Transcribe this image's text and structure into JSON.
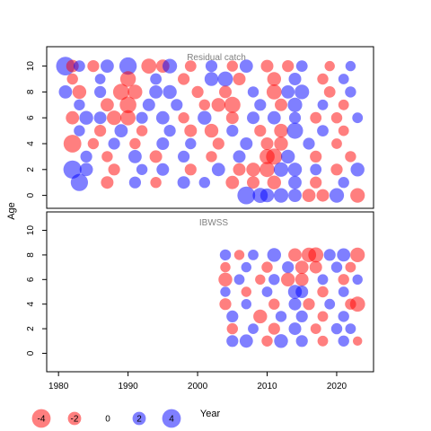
{
  "chart_data": [
    {
      "type": "scatter",
      "title": "Residual catch",
      "ylabel": "Age",
      "xlim": [
        1978.3,
        2025.3
      ],
      "ylim": [
        -1,
        11.5
      ],
      "y_ticks": [
        0,
        2,
        4,
        6,
        8,
        10
      ],
      "x_ticks": [],
      "grid": false,
      "positive_color": "#0000ff",
      "negative_color": "#ff0000",
      "points": [
        {
          "x": 1981,
          "y": 10,
          "v": 4.0
        },
        {
          "x": 1982,
          "y": 10,
          "v": -1.8
        },
        {
          "x": 1983,
          "y": 10,
          "v": 1.5
        },
        {
          "x": 1985,
          "y": 10,
          "v": -1.6
        },
        {
          "x": 1987,
          "y": 10,
          "v": 2.0
        },
        {
          "x": 1990,
          "y": 10,
          "v": 3.5
        },
        {
          "x": 1993,
          "y": 10,
          "v": -2.6
        },
        {
          "x": 1995,
          "y": 10,
          "v": -2.0
        },
        {
          "x": 1996,
          "y": 10,
          "v": 2.4
        },
        {
          "x": 1999,
          "y": 10,
          "v": -1.5
        },
        {
          "x": 2002,
          "y": 10,
          "v": 1.6
        },
        {
          "x": 2005,
          "y": 10,
          "v": -1.4
        },
        {
          "x": 2007,
          "y": 10,
          "v": 2.0
        },
        {
          "x": 2010,
          "y": 10,
          "v": -1.8
        },
        {
          "x": 2013,
          "y": 10,
          "v": -1.6
        },
        {
          "x": 2015,
          "y": 10,
          "v": 1.5
        },
        {
          "x": 2019,
          "y": 10,
          "v": -1.2
        },
        {
          "x": 2022,
          "y": 10,
          "v": 1.2
        },
        {
          "x": 1982,
          "y": 9,
          "v": -1.4
        },
        {
          "x": 1986,
          "y": 9,
          "v": 1.3
        },
        {
          "x": 1990,
          "y": 9,
          "v": -2.8
        },
        {
          "x": 1994,
          "y": 9,
          "v": 1.5
        },
        {
          "x": 1998,
          "y": 9,
          "v": -1.6
        },
        {
          "x": 2002,
          "y": 9,
          "v": 2.2
        },
        {
          "x": 2004,
          "y": 9,
          "v": 2.6
        },
        {
          "x": 2006,
          "y": 9,
          "v": -1.8
        },
        {
          "x": 2011,
          "y": 9,
          "v": -2.2
        },
        {
          "x": 2014,
          "y": 9,
          "v": 1.8
        },
        {
          "x": 2018,
          "y": 9,
          "v": -1.4
        },
        {
          "x": 2021,
          "y": 9,
          "v": 1.3
        },
        {
          "x": 1981,
          "y": 8,
          "v": 2.0
        },
        {
          "x": 1983,
          "y": 8,
          "v": -2.2
        },
        {
          "x": 1986,
          "y": 8,
          "v": 1.6
        },
        {
          "x": 1989,
          "y": 8,
          "v": -3.0
        },
        {
          "x": 1991,
          "y": 8,
          "v": -2.4
        },
        {
          "x": 1994,
          "y": 8,
          "v": 2.0
        },
        {
          "x": 1996,
          "y": 8,
          "v": 2.2
        },
        {
          "x": 2000,
          "y": 8,
          "v": -1.6
        },
        {
          "x": 2004,
          "y": 8,
          "v": -1.8
        },
        {
          "x": 2008,
          "y": 8,
          "v": 1.4
        },
        {
          "x": 2011,
          "y": 8,
          "v": -2.6
        },
        {
          "x": 2013,
          "y": 8,
          "v": 2.0
        },
        {
          "x": 2015,
          "y": 8,
          "v": 2.4
        },
        {
          "x": 2019,
          "y": 8,
          "v": -1.5
        },
        {
          "x": 2022,
          "y": 8,
          "v": 1.4
        },
        {
          "x": 1983,
          "y": 7,
          "v": 1.4
        },
        {
          "x": 1987,
          "y": 7,
          "v": -2.0
        },
        {
          "x": 1990,
          "y": 7,
          "v": -3.2
        },
        {
          "x": 1993,
          "y": 7,
          "v": 1.8
        },
        {
          "x": 1997,
          "y": 7,
          "v": 1.6
        },
        {
          "x": 2001,
          "y": 7,
          "v": -1.4
        },
        {
          "x": 2003,
          "y": 7,
          "v": -2.2
        },
        {
          "x": 2005,
          "y": 7,
          "v": -3.0
        },
        {
          "x": 2009,
          "y": 7,
          "v": 1.6
        },
        {
          "x": 2012,
          "y": 7,
          "v": -1.8
        },
        {
          "x": 2014,
          "y": 7,
          "v": 2.4
        },
        {
          "x": 2018,
          "y": 7,
          "v": 1.3
        },
        {
          "x": 2021,
          "y": 7,
          "v": -1.3
        },
        {
          "x": 1982,
          "y": 6,
          "v": -2.0
        },
        {
          "x": 1984,
          "y": 6,
          "v": 2.2
        },
        {
          "x": 1986,
          "y": 6,
          "v": 1.8
        },
        {
          "x": 1988,
          "y": 6,
          "v": -2.4
        },
        {
          "x": 1990,
          "y": 6,
          "v": -2.6
        },
        {
          "x": 1992,
          "y": 6,
          "v": 1.6
        },
        {
          "x": 1995,
          "y": 6,
          "v": 2.0
        },
        {
          "x": 1998,
          "y": 6,
          "v": -1.4
        },
        {
          "x": 2001,
          "y": 6,
          "v": 2.2
        },
        {
          "x": 2005,
          "y": 6,
          "v": -1.8
        },
        {
          "x": 2008,
          "y": 6,
          "v": 1.8
        },
        {
          "x": 2011,
          "y": 6,
          "v": 2.0
        },
        {
          "x": 2014,
          "y": 6,
          "v": 1.6
        },
        {
          "x": 2017,
          "y": 6,
          "v": -1.5
        },
        {
          "x": 2020,
          "y": 6,
          "v": -1.4
        },
        {
          "x": 2023,
          "y": 6,
          "v": 1.3
        },
        {
          "x": 1983,
          "y": 5,
          "v": 1.4
        },
        {
          "x": 1986,
          "y": 5,
          "v": -1.6
        },
        {
          "x": 1989,
          "y": 5,
          "v": 2.0
        },
        {
          "x": 1992,
          "y": 5,
          "v": -1.4
        },
        {
          "x": 1996,
          "y": 5,
          "v": 1.6
        },
        {
          "x": 1999,
          "y": 5,
          "v": -1.8
        },
        {
          "x": 2002,
          "y": 5,
          "v": -2.2
        },
        {
          "x": 2005,
          "y": 5,
          "v": 1.6
        },
        {
          "x": 2009,
          "y": 5,
          "v": -1.6
        },
        {
          "x": 2012,
          "y": 5,
          "v": -2.2
        },
        {
          "x": 2014,
          "y": 5,
          "v": 3.0
        },
        {
          "x": 2018,
          "y": 5,
          "v": 1.5
        },
        {
          "x": 2021,
          "y": 5,
          "v": -1.3
        },
        {
          "x": 1982,
          "y": 4,
          "v": -3.6
        },
        {
          "x": 1985,
          "y": 4,
          "v": -1.4
        },
        {
          "x": 1988,
          "y": 4,
          "v": 1.6
        },
        {
          "x": 1991,
          "y": 4,
          "v": -1.4
        },
        {
          "x": 1995,
          "y": 4,
          "v": 1.8
        },
        {
          "x": 1999,
          "y": 4,
          "v": 1.4
        },
        {
          "x": 2003,
          "y": 4,
          "v": -1.6
        },
        {
          "x": 2007,
          "y": 4,
          "v": 1.8
        },
        {
          "x": 2010,
          "y": 4,
          "v": -1.8
        },
        {
          "x": 2012,
          "y": 4,
          "v": -2.2
        },
        {
          "x": 2016,
          "y": 4,
          "v": 1.6
        },
        {
          "x": 2020,
          "y": 4,
          "v": -1.3
        },
        {
          "x": 1984,
          "y": 3,
          "v": 1.6
        },
        {
          "x": 1987,
          "y": 3,
          "v": -1.4
        },
        {
          "x": 1991,
          "y": 3,
          "v": 2.0
        },
        {
          "x": 1994,
          "y": 3,
          "v": -1.8
        },
        {
          "x": 1998,
          "y": 3,
          "v": 1.6
        },
        {
          "x": 2002,
          "y": 3,
          "v": -1.4
        },
        {
          "x": 2006,
          "y": 3,
          "v": 1.8
        },
        {
          "x": 2010,
          "y": 3,
          "v": -2.6
        },
        {
          "x": 2011,
          "y": 3,
          "v": -3.0
        },
        {
          "x": 2013,
          "y": 3,
          "v": 2.2
        },
        {
          "x": 2017,
          "y": 3,
          "v": -1.6
        },
        {
          "x": 2022,
          "y": 3,
          "v": -1.4
        },
        {
          "x": 1982,
          "y": 2,
          "v": 3.8
        },
        {
          "x": 1984,
          "y": 2,
          "v": 2.0
        },
        {
          "x": 1988,
          "y": 2,
          "v": -1.6
        },
        {
          "x": 1992,
          "y": 2,
          "v": 1.4
        },
        {
          "x": 1995,
          "y": 2,
          "v": 1.8
        },
        {
          "x": 1999,
          "y": 2,
          "v": -1.6
        },
        {
          "x": 2003,
          "y": 2,
          "v": 2.0
        },
        {
          "x": 2006,
          "y": 2,
          "v": -1.8
        },
        {
          "x": 2008,
          "y": 2,
          "v": -2.2
        },
        {
          "x": 2010,
          "y": 2,
          "v": -2.6
        },
        {
          "x": 2012,
          "y": 2,
          "v": 2.4
        },
        {
          "x": 2014,
          "y": 2,
          "v": 2.2
        },
        {
          "x": 2017,
          "y": 2,
          "v": 1.5
        },
        {
          "x": 2020,
          "y": 2,
          "v": -1.6
        },
        {
          "x": 2023,
          "y": 2,
          "v": 2.2
        },
        {
          "x": 1983,
          "y": 1,
          "v": 3.4
        },
        {
          "x": 1987,
          "y": 1,
          "v": -1.8
        },
        {
          "x": 1991,
          "y": 1,
          "v": 1.6
        },
        {
          "x": 1994,
          "y": 1,
          "v": -1.4
        },
        {
          "x": 1998,
          "y": 1,
          "v": 1.8
        },
        {
          "x": 2001,
          "y": 1,
          "v": 1.4
        },
        {
          "x": 2005,
          "y": 1,
          "v": -2.0
        },
        {
          "x": 2008,
          "y": 1,
          "v": -1.8
        },
        {
          "x": 2011,
          "y": 1,
          "v": -2.2
        },
        {
          "x": 2014,
          "y": 1,
          "v": 2.0
        },
        {
          "x": 2017,
          "y": 1,
          "v": -1.6
        },
        {
          "x": 2021,
          "y": 1,
          "v": 1.4
        },
        {
          "x": 2007,
          "y": 0,
          "v": 3.6
        },
        {
          "x": 2009,
          "y": 0,
          "v": 2.6
        },
        {
          "x": 2010,
          "y": 0,
          "v": 2.2
        },
        {
          "x": 2012,
          "y": 0,
          "v": 2.4
        },
        {
          "x": 2014,
          "y": 0,
          "v": 2.0
        },
        {
          "x": 2016,
          "y": 0,
          "v": -2.0
        },
        {
          "x": 2018,
          "y": 0,
          "v": -1.8
        },
        {
          "x": 2020,
          "y": 0,
          "v": 2.4
        },
        {
          "x": 2023,
          "y": 0,
          "v": -2.4
        }
      ]
    },
    {
      "type": "scatter",
      "title": "IBWSS",
      "ylabel": "Age",
      "xlabel": "Year",
      "xlim": [
        1978.3,
        2025.3
      ],
      "ylim": [
        -1.5,
        11.5
      ],
      "y_ticks": [
        0,
        2,
        4,
        6,
        8,
        10
      ],
      "x_ticks": [
        1980,
        1990,
        2000,
        2010,
        2020
      ],
      "grid": false,
      "positive_color": "#0000ff",
      "negative_color": "#ff0000",
      "points": [
        {
          "x": 2004,
          "y": 8,
          "v": 1.4
        },
        {
          "x": 2006,
          "y": 8,
          "v": -1.2
        },
        {
          "x": 2008,
          "y": 8,
          "v": 1.3
        },
        {
          "x": 2011,
          "y": 8,
          "v": 2.2
        },
        {
          "x": 2014,
          "y": 8,
          "v": -2.0
        },
        {
          "x": 2016,
          "y": 8,
          "v": -2.4
        },
        {
          "x": 2017,
          "y": 8,
          "v": -2.6
        },
        {
          "x": 2019,
          "y": 8,
          "v": 1.6
        },
        {
          "x": 2021,
          "y": 8,
          "v": 2.0
        },
        {
          "x": 2023,
          "y": 8,
          "v": -2.4
        },
        {
          "x": 2004,
          "y": 7,
          "v": -1.2
        },
        {
          "x": 2007,
          "y": 7,
          "v": 1.2
        },
        {
          "x": 2010,
          "y": 7,
          "v": -1.4
        },
        {
          "x": 2013,
          "y": 7,
          "v": 1.6
        },
        {
          "x": 2015,
          "y": 7,
          "v": -2.0
        },
        {
          "x": 2017,
          "y": 7,
          "v": -1.8
        },
        {
          "x": 2020,
          "y": 7,
          "v": 1.4
        },
        {
          "x": 2022,
          "y": 7,
          "v": -1.3
        },
        {
          "x": 2004,
          "y": 6,
          "v": -2.2
        },
        {
          "x": 2006,
          "y": 6,
          "v": 1.3
        },
        {
          "x": 2009,
          "y": 6,
          "v": -1.2
        },
        {
          "x": 2011,
          "y": 6,
          "v": 1.4
        },
        {
          "x": 2013,
          "y": 6,
          "v": -2.2
        },
        {
          "x": 2015,
          "y": 6,
          "v": -2.0
        },
        {
          "x": 2018,
          "y": 6,
          "v": 1.3
        },
        {
          "x": 2021,
          "y": 6,
          "v": -1.4
        },
        {
          "x": 2023,
          "y": 6,
          "v": 1.2
        },
        {
          "x": 2004,
          "y": 5,
          "v": 1.2
        },
        {
          "x": 2007,
          "y": 5,
          "v": -1.2
        },
        {
          "x": 2010,
          "y": 5,
          "v": 1.3
        },
        {
          "x": 2014,
          "y": 5,
          "v": 2.2
        },
        {
          "x": 2015,
          "y": 5,
          "v": 1.8
        },
        {
          "x": 2018,
          "y": 5,
          "v": -1.4
        },
        {
          "x": 2021,
          "y": 5,
          "v": 1.3
        },
        {
          "x": 2004,
          "y": 4,
          "v": -1.6
        },
        {
          "x": 2007,
          "y": 4,
          "v": 1.2
        },
        {
          "x": 2011,
          "y": 4,
          "v": -1.4
        },
        {
          "x": 2014,
          "y": 4,
          "v": 1.8
        },
        {
          "x": 2016,
          "y": 4,
          "v": -1.6
        },
        {
          "x": 2019,
          "y": 4,
          "v": 1.3
        },
        {
          "x": 2022,
          "y": 4,
          "v": -1.4
        },
        {
          "x": 2023,
          "y": 4,
          "v": -2.6
        },
        {
          "x": 2005,
          "y": 3,
          "v": 1.6
        },
        {
          "x": 2009,
          "y": 3,
          "v": -2.2
        },
        {
          "x": 2012,
          "y": 3,
          "v": 1.4
        },
        {
          "x": 2015,
          "y": 3,
          "v": 1.6
        },
        {
          "x": 2018,
          "y": 3,
          "v": -1.3
        },
        {
          "x": 2021,
          "y": 3,
          "v": 1.4
        },
        {
          "x": 2005,
          "y": 2,
          "v": -1.4
        },
        {
          "x": 2008,
          "y": 2,
          "v": 1.3
        },
        {
          "x": 2011,
          "y": 2,
          "v": -1.6
        },
        {
          "x": 2014,
          "y": 2,
          "v": 1.8
        },
        {
          "x": 2017,
          "y": 2,
          "v": -1.3
        },
        {
          "x": 2020,
          "y": 2,
          "v": 1.4
        },
        {
          "x": 2022,
          "y": 2,
          "v": 1.3
        },
        {
          "x": 2005,
          "y": 1,
          "v": 1.6
        },
        {
          "x": 2007,
          "y": 1,
          "v": 2.0
        },
        {
          "x": 2010,
          "y": 1,
          "v": -1.4
        },
        {
          "x": 2012,
          "y": 1,
          "v": 2.2
        },
        {
          "x": 2015,
          "y": 1,
          "v": 1.6
        },
        {
          "x": 2018,
          "y": 1,
          "v": -1.3
        },
        {
          "x": 2021,
          "y": 1,
          "v": 1.4
        },
        {
          "x": 2023,
          "y": 1,
          "v": -1.0
        }
      ]
    }
  ],
  "legend": {
    "placement": "bottom-left",
    "items": [
      {
        "label": "-4",
        "v": -4
      },
      {
        "label": "-2",
        "v": -2
      },
      {
        "label": "0",
        "v": 0
      },
      {
        "label": "2",
        "v": 2
      },
      {
        "label": "4",
        "v": 4
      }
    ]
  }
}
